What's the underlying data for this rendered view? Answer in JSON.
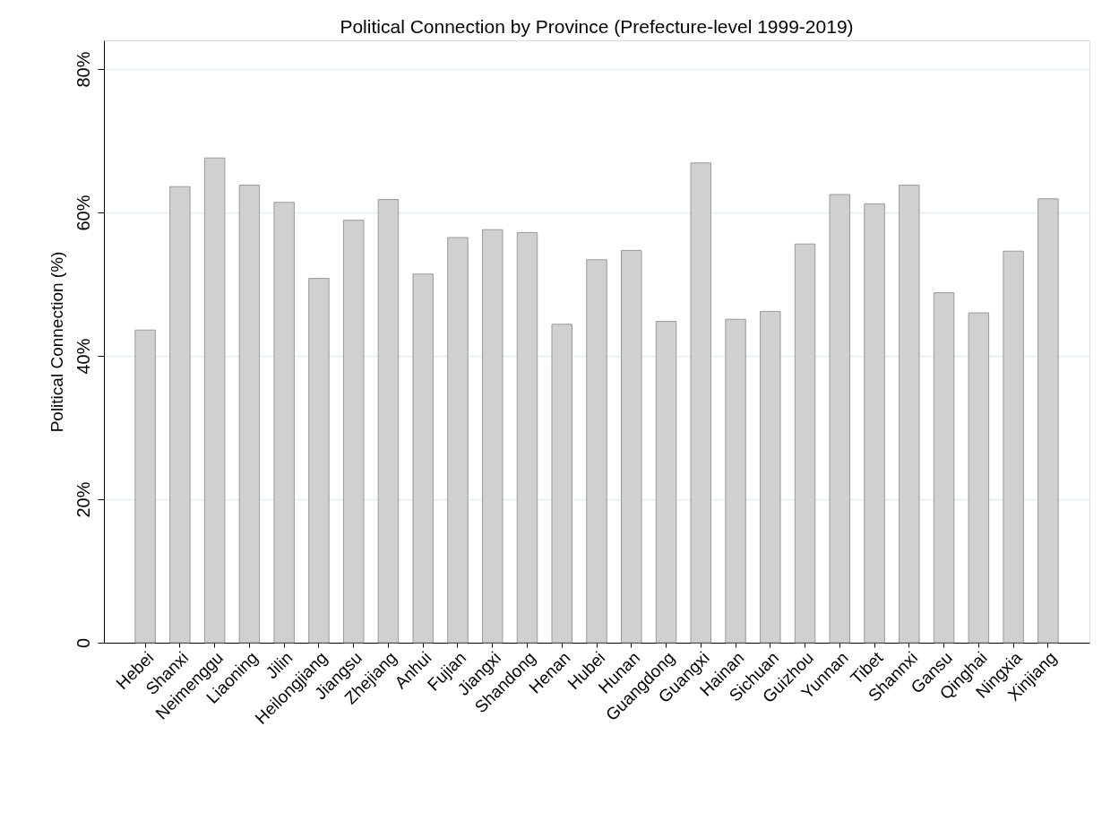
{
  "chart_data": {
    "type": "bar",
    "title": "Political Connection by Province (Prefecture-level 1999-2019)",
    "ylabel": "Political Connection (%)",
    "categories": [
      "Hebei",
      "Shanxi",
      "Neimenggu",
      "Liaoning",
      "Jilin",
      "Heilongjiang",
      "Jiangsu",
      "Zhejiang",
      "Anhui",
      "Fujian",
      "Jiangxi",
      "Shandong",
      "Henan",
      "Hubei",
      "Hunan",
      "Guangdong",
      "Guangxi",
      "Hainan",
      "Sichuan",
      "Guizhou",
      "Yunnan",
      "Tibet",
      "Shannxi",
      "Gansu",
      "Qinghai",
      "Ningxia",
      "Xinjiang"
    ],
    "values": [
      43.6,
      63.6,
      67.6,
      63.8,
      61.4,
      50.8,
      58.9,
      61.8,
      51.4,
      56.5,
      57.6,
      57.2,
      44.4,
      53.4,
      54.7,
      44.8,
      66.9,
      45.1,
      46.2,
      55.6,
      62.5,
      61.2,
      63.8,
      48.8,
      46.0,
      54.6,
      61.9
    ],
    "color": "#d0d0d0",
    "ylim": [
      0,
      84
    ],
    "yticks": [
      0,
      {
        "value": 20,
        "label": "20%"
      },
      {
        "value": 40,
        "label": "40%"
      },
      {
        "value": 60,
        "label": "60%"
      },
      {
        "value": 80,
        "label": "80%"
      }
    ],
    "grid": "y"
  }
}
